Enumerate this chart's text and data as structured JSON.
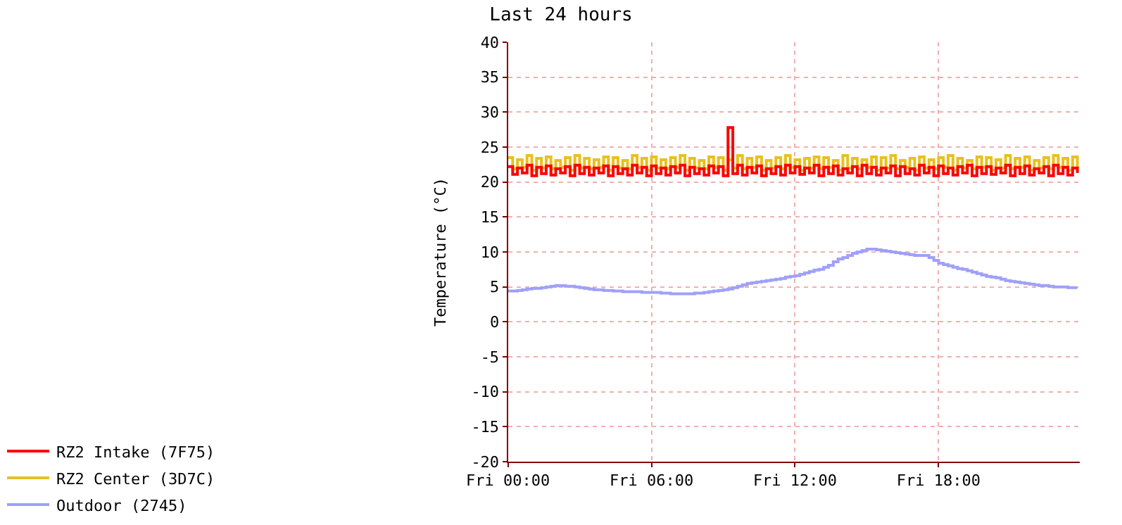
{
  "chart_data": {
    "type": "step",
    "title": "Last 24 hours",
    "ylabel": "Temperature (°C)",
    "categories": [
      "Fri 00:00",
      null,
      null,
      null,
      null,
      null,
      null,
      null,
      null,
      null,
      null,
      null,
      null,
      null,
      null,
      null,
      null,
      null,
      null,
      null,
      null,
      null,
      null,
      null,
      null,
      null,
      null,
      null,
      null,
      null,
      "Fri 06:00",
      null,
      null,
      null,
      null,
      null,
      null,
      null,
      null,
      null,
      null,
      null,
      null,
      null,
      null,
      null,
      null,
      null,
      null,
      null,
      null,
      null,
      null,
      null,
      null,
      null,
      null,
      null,
      null,
      null,
      "Fri 12:00",
      null,
      null,
      null,
      null,
      null,
      null,
      null,
      null,
      null,
      null,
      null,
      null,
      null,
      null,
      null,
      null,
      null,
      null,
      null,
      null,
      null,
      null,
      null,
      null,
      null,
      null,
      null,
      null,
      null,
      "Fri 18:00",
      null,
      null,
      null,
      null,
      null,
      null,
      null,
      null,
      null,
      null,
      null,
      null,
      null,
      null,
      null,
      null,
      null,
      null,
      null,
      null,
      null,
      null,
      null,
      null,
      null,
      null,
      null,
      null,
      null
    ],
    "ylim": [
      -20,
      40
    ],
    "yticks": [
      -20,
      -15,
      -10,
      -5,
      0,
      5,
      10,
      15,
      20,
      25,
      30,
      35,
      40
    ],
    "grid": true,
    "legend": "bottom",
    "series": [
      {
        "name": "RZ2 Intake (7F75)",
        "color": "#ff0000",
        "values": [
          22.2,
          21.1,
          22.0,
          21.3,
          22.4,
          20.9,
          22.1,
          21.2,
          22.3,
          21.0,
          21.9,
          21.3,
          22.2,
          20.9,
          22.4,
          21.2,
          22.1,
          21.0,
          22.0,
          21.3,
          22.3,
          20.9,
          22.2,
          21.2,
          21.9,
          21.0,
          22.4,
          21.3,
          22.1,
          20.9,
          22.3,
          21.2,
          22.0,
          21.0,
          22.2,
          21.3,
          22.4,
          20.9,
          22.1,
          21.2,
          21.9,
          21.0,
          22.3,
          21.3,
          22.2,
          20.9,
          27.8,
          21.2,
          22.4,
          21.0,
          22.1,
          21.3,
          22.3,
          20.9,
          21.9,
          21.2,
          22.2,
          21.0,
          22.4,
          21.3,
          22.2,
          21.1,
          22.0,
          21.3,
          22.4,
          20.9,
          22.1,
          21.2,
          22.3,
          21.0,
          21.9,
          21.3,
          22.2,
          20.9,
          22.4,
          21.2,
          22.1,
          21.0,
          22.0,
          21.3,
          22.3,
          20.9,
          22.2,
          21.2,
          21.9,
          21.0,
          22.4,
          21.3,
          22.1,
          20.9,
          22.3,
          21.2,
          22.0,
          21.0,
          22.2,
          21.3,
          22.4,
          20.9,
          22.1,
          21.2,
          22.2,
          21.1,
          22.0,
          21.3,
          22.4,
          20.9,
          22.1,
          21.2,
          22.3,
          21.0,
          21.9,
          21.3,
          22.2,
          20.9,
          22.4,
          21.2,
          22.1,
          21.0,
          22.0,
          21.3
        ]
      },
      {
        "name": "RZ2 Center (3D7C)",
        "color": "#e8c020",
        "values": [
          23.5,
          21.9,
          23.2,
          22.1,
          23.8,
          21.7,
          23.4,
          22.0,
          23.6,
          21.9,
          23.1,
          22.1,
          23.5,
          21.7,
          23.8,
          22.0,
          23.4,
          21.9,
          23.2,
          22.1,
          23.6,
          21.7,
          23.5,
          22.0,
          23.1,
          21.9,
          23.8,
          22.1,
          23.4,
          21.7,
          23.6,
          22.0,
          23.2,
          21.9,
          23.5,
          22.1,
          23.8,
          21.7,
          23.4,
          22.0,
          23.1,
          21.9,
          23.6,
          22.1,
          23.5,
          21.7,
          23.2,
          22.0,
          23.8,
          21.9,
          23.4,
          22.1,
          23.6,
          21.7,
          23.1,
          22.0,
          23.5,
          21.9,
          23.8,
          22.1,
          23.2,
          21.7,
          23.4,
          22.0,
          23.6,
          21.9,
          23.5,
          22.1,
          23.1,
          21.7,
          23.8,
          22.0,
          23.4,
          21.9,
          23.2,
          22.1,
          23.6,
          21.7,
          23.5,
          22.0,
          23.8,
          21.9,
          23.1,
          22.1,
          23.4,
          21.7,
          23.6,
          22.0,
          23.2,
          21.9,
          23.5,
          22.1,
          23.8,
          21.7,
          23.4,
          22.0,
          23.1,
          21.9,
          23.6,
          22.1,
          23.5,
          21.7,
          23.2,
          22.0,
          23.8,
          21.9,
          23.4,
          22.1,
          23.6,
          21.7,
          23.1,
          22.0,
          23.5,
          21.9,
          23.8,
          22.1,
          23.4,
          21.7,
          23.6,
          22.0
        ]
      },
      {
        "name": "Outdoor (2745)",
        "color": "#a0a0f8",
        "values": [
          4.4,
          4.4,
          4.5,
          4.6,
          4.7,
          4.8,
          4.8,
          4.9,
          5.0,
          5.1,
          5.2,
          5.2,
          5.1,
          5.1,
          5.0,
          4.9,
          4.8,
          4.7,
          4.6,
          4.6,
          4.5,
          4.5,
          4.4,
          4.4,
          4.3,
          4.3,
          4.3,
          4.3,
          4.2,
          4.2,
          4.2,
          4.2,
          4.1,
          4.1,
          4.0,
          4.0,
          4.0,
          4.0,
          4.0,
          4.1,
          4.1,
          4.2,
          4.3,
          4.4,
          4.5,
          4.6,
          4.7,
          4.9,
          5.1,
          5.3,
          5.5,
          5.6,
          5.7,
          5.8,
          5.9,
          6.0,
          6.1,
          6.2,
          6.4,
          6.5,
          6.6,
          6.8,
          7.0,
          7.2,
          7.4,
          7.5,
          7.8,
          8.1,
          8.6,
          9.0,
          9.2,
          9.5,
          9.8,
          10.0,
          10.2,
          10.4,
          10.4,
          10.3,
          10.2,
          10.1,
          10.0,
          9.9,
          9.8,
          9.7,
          9.6,
          9.5,
          9.5,
          9.5,
          9.2,
          8.8,
          8.4,
          8.2,
          8.0,
          7.8,
          7.6,
          7.5,
          7.3,
          7.1,
          6.9,
          6.7,
          6.5,
          6.4,
          6.3,
          6.1,
          5.9,
          5.8,
          5.7,
          5.6,
          5.5,
          5.4,
          5.3,
          5.2,
          5.2,
          5.1,
          5.0,
          5.0,
          5.0,
          4.9,
          4.9,
          4.9
        ]
      }
    ]
  }
}
